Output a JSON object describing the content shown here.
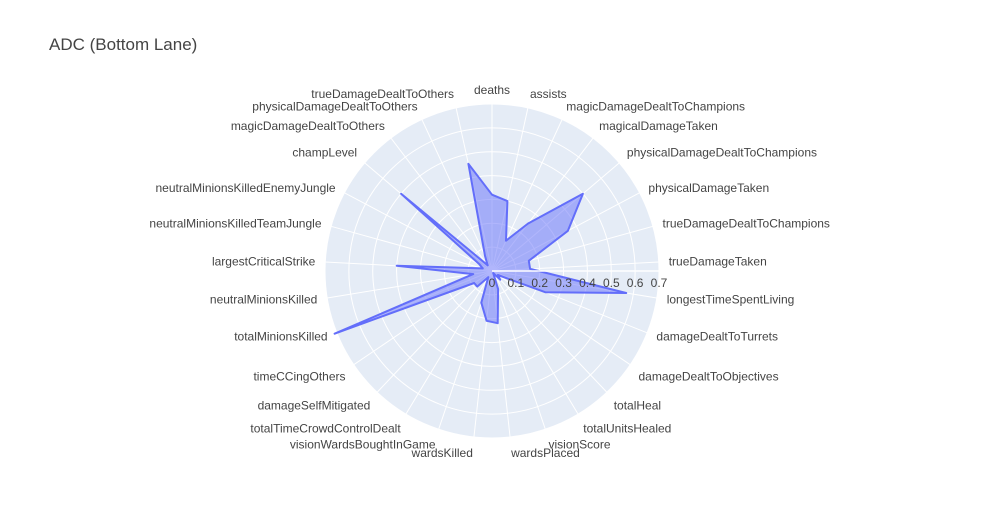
{
  "chart_data": {
    "type": "radar",
    "title": "ADC (Bottom Lane)",
    "radial_ticks": [
      "0",
      "0.1",
      "0.2",
      "0.3",
      "0.4",
      "0.5",
      "0.6",
      "0.7"
    ],
    "radial_range": [
      0,
      0.7
    ],
    "grid": true,
    "categories": [
      "deaths",
      "assists",
      "magicDamageDealtToChampions",
      "magicalDamageTaken",
      "physicalDamageDealtToChampions",
      "physicalDamageTaken",
      "trueDamageDealtToChampions",
      "trueDamageTaken",
      "longestTimeSpentLiving",
      "damageDealtToTurrets",
      "damageDealtToObjectives",
      "totalHeal",
      "totalUnitsHealed",
      "visionScore",
      "wardsPlaced",
      "wardsKilled",
      "visionWardsBoughtInGame",
      "totalTimeCrowdControlDealt",
      "damageSelfMitigated",
      "timeCCingOthers",
      "totalMinionsKilled",
      "neutralMinionsKilled",
      "largestCriticalStrike",
      "neutralMinionsKilledTeamJungle",
      "neutralMinionsKilledEnemyJungle",
      "champLevel",
      "magicDamageDealtToOthers",
      "physicalDamageDealtToOthers",
      "trueDamageDealtToOthers"
    ],
    "series": [
      {
        "values": [
          0.32,
          0.3,
          0.14,
          0.25,
          0.5,
          0.36,
          0.16,
          0.16,
          0.57,
          0.24,
          0.03,
          0.05,
          0.01,
          0.08,
          0.22,
          0.21,
          0.14,
          0.03,
          0.09,
          0.09,
          0.71,
          0.08,
          0.4,
          0.04,
          0.06,
          0.5,
          0.03,
          0.07,
          0.46
        ],
        "color": "#636efa"
      }
    ]
  }
}
